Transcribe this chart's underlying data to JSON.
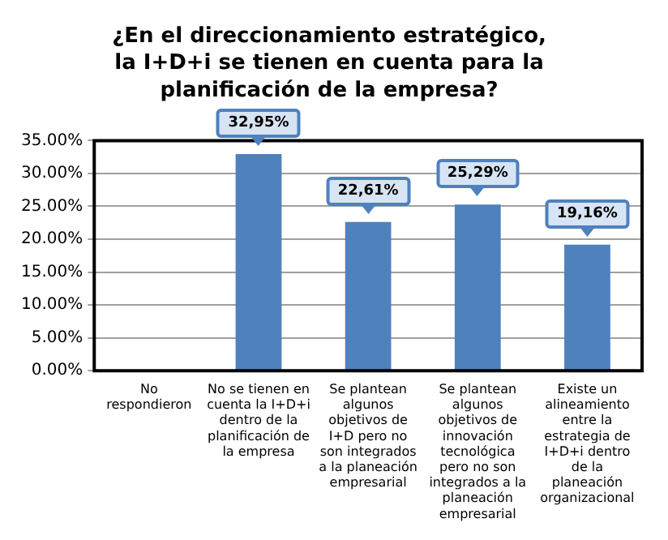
{
  "chart_data": {
    "type": "bar",
    "title": "¿En el direccionamiento estratégico, la I+D+i se tienen en cuenta para la planificación de la empresa?",
    "categories": [
      "No respondieron",
      "No se tienen en cuenta la I+D+i dentro de la planificación de la empresa",
      "Se plantean algunos objetivos de I+D pero no son integrados a la planeación empresarial",
      "Se plantean algunos objetivos de innovación tecnológica pero no son integrados a la planeación empresarial",
      "Existe un alineamiento entre la estrategia de I+D+i dentro de la planeación organizacional"
    ],
    "values": [
      0,
      32.95,
      22.61,
      25.29,
      19.16
    ],
    "value_labels": [
      null,
      "32,95%",
      "22,61%",
      "25,29%",
      "19,16%"
    ],
    "color": "#4f81bd",
    "ylim": [
      0,
      35
    ],
    "yticks": [
      {
        "value": 0,
        "label": "0.00%"
      },
      {
        "value": 5,
        "label": "5.00%"
      },
      {
        "value": 10,
        "label": "10.00%"
      },
      {
        "value": 15,
        "label": "15.00%"
      },
      {
        "value": 20,
        "label": "20.00%"
      },
      {
        "value": 25,
        "label": "25.00%"
      },
      {
        "value": 30,
        "label": "30.00%"
      },
      {
        "value": 35,
        "label": "35.00%"
      }
    ],
    "grid": "y",
    "legend": false
  }
}
